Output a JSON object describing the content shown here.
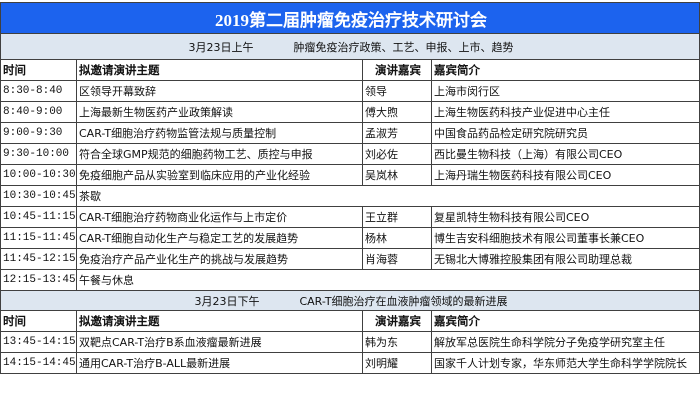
{
  "title": "2019第二届肿瘤免疫治疗技术研讨会",
  "colors": {
    "title_bg": "#1c63ee",
    "session_bg": "#dde6f0",
    "border": "#404040"
  },
  "headers": {
    "time": "时间",
    "topic": "拟邀请演讲主题",
    "speaker": "演讲嘉宾",
    "bio": "嘉宾简介"
  },
  "sessions": [
    {
      "date": "3月23日上午",
      "theme": "肿瘤免疫治疗政策、工艺、申报、上市、趋势",
      "rows": [
        {
          "time": "8:30-8:40",
          "topic": "区领导开幕致辞",
          "speaker": "领导",
          "bio": "上海市闵行区"
        },
        {
          "time": "8:40-9:00",
          "topic": "上海最新生物医药产业政策解读",
          "speaker": "傅大煦",
          "bio": "上海生物医药科技产业促进中心主任"
        },
        {
          "time": "9:00-9:30",
          "topic": "CAR-T细胞治疗药物监管法规与质量控制",
          "speaker": "孟淑芳",
          "bio": "中国食品药品检定研究院研究员"
        },
        {
          "time": "9:30-10:00",
          "topic": "符合全球GMP规范的细胞药物工艺、质控与申报",
          "speaker": "刘必佐",
          "bio": "西比曼生物科技（上海）有限公司CEO"
        },
        {
          "time": "10:00-10:30",
          "topic": "免疫细胞产品从实验室到临床应用的产业化经验",
          "speaker": "吴岚林",
          "bio": "上海丹瑞生物医药科技有限公司CEO"
        },
        {
          "time": "10:30-10:45",
          "topic": "茶歇",
          "speaker": "",
          "bio": "",
          "merged": true
        },
        {
          "time": "10:45-11:15",
          "topic": "CAR-T细胞治疗药物商业化运作与上市定价",
          "speaker": "王立群",
          "bio": "复星凯特生物科技有限公司CEO"
        },
        {
          "time": "11:15-11:45",
          "topic": "CAR-T细胞自动化生产与稳定工艺的发展趋势",
          "speaker": "杨林",
          "bio": "博生吉安科细胞技术有限公司董事长兼CEO"
        },
        {
          "time": "11:45-12:15",
          "topic": "免疫治疗产品产业化生产的挑战与发展趋势",
          "speaker": "肖海蓉",
          "bio": "无锡北大博雅控股集团有限公司助理总裁"
        },
        {
          "time": "12:15-13:45",
          "topic": "午餐与休息",
          "speaker": "",
          "bio": "",
          "merged": true
        }
      ]
    },
    {
      "date": "3月23日下午",
      "theme": "CAR-T细胞治疗在血液肿瘤领域的最新进展",
      "rows": [
        {
          "time": "13:45-14:15",
          "topic": "双靶点CAR-T治疗B系血液瘤最新进展",
          "speaker": "韩为东",
          "bio": "解放军总医院生命科学院分子免疫学研究室主任"
        },
        {
          "time": "14:15-14:45",
          "topic": "通用CAR-T治疗B-ALL最新进展",
          "speaker": "刘明耀",
          "bio": "国家千人计划专家，华东师范大学生命科学学院院长"
        }
      ]
    }
  ]
}
